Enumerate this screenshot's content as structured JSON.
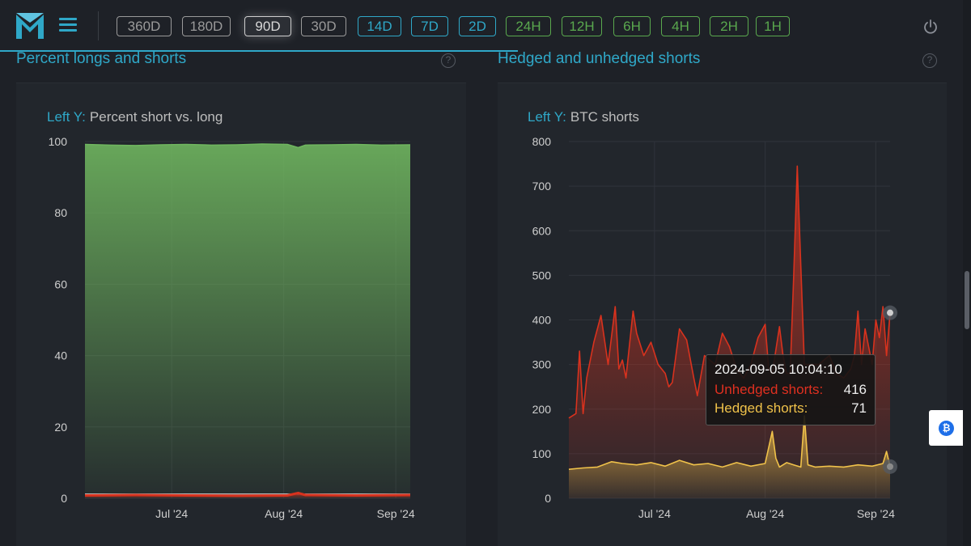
{
  "toolbar": {
    "timeframes": [
      {
        "label": "360D",
        "style": "gray"
      },
      {
        "label": "180D",
        "style": "gray"
      },
      {
        "label": "90D",
        "style": "active"
      },
      {
        "label": "30D",
        "style": "gray"
      },
      {
        "label": "14D",
        "style": "blue"
      },
      {
        "label": "7D",
        "style": "blue"
      },
      {
        "label": "2D",
        "style": "blue"
      },
      {
        "label": "24H",
        "style": "green"
      },
      {
        "label": "12H",
        "style": "green"
      },
      {
        "label": "6H",
        "style": "green"
      },
      {
        "label": "4H",
        "style": "green"
      },
      {
        "label": "2H",
        "style": "green"
      },
      {
        "label": "1H",
        "style": "green"
      }
    ],
    "icons": {
      "logo": "m-logo-icon",
      "menu": "hamburger-menu-icon",
      "power": "power-icon"
    }
  },
  "colors": {
    "accent": "#2fa8c8",
    "green_series": "#6fb55f",
    "red_series": "#d8321e",
    "yellow_series": "#f0c24a"
  },
  "sections": {
    "left_title": "Percent longs and shorts",
    "right_title": "Hedged and unhedged shorts",
    "help_glyph": "?"
  },
  "tooltip": {
    "date": "2024-09-05 10:04:10",
    "unhedged_label": "Unhedged shorts:",
    "unhedged_value": "416",
    "hedged_label": "Hedged shorts:",
    "hedged_value": "71"
  },
  "widget": {
    "btc_icon": "bitcoin-icon",
    "btc_glyph": "₿"
  },
  "chart_data": [
    {
      "type": "area",
      "axis_prefix": "Left Y:",
      "axis_title": "Percent short vs. long",
      "ylim": [
        0,
        100
      ],
      "yticks": [
        0,
        20,
        40,
        60,
        80,
        100
      ],
      "xlim": [
        "2024-06-07",
        "2024-09-05"
      ],
      "xticks": [
        {
          "label": "Jul '24",
          "x": "2024-07-01"
        },
        {
          "label": "Aug '24",
          "x": "2024-08-01"
        },
        {
          "label": "Sep '24",
          "x": "2024-09-01"
        }
      ],
      "grid": true,
      "series": [
        {
          "color": "#6fb55f",
          "x": [
            "2024-06-07",
            "2024-06-14",
            "2024-06-21",
            "2024-06-28",
            "2024-07-05",
            "2024-07-12",
            "2024-07-19",
            "2024-07-26",
            "2024-08-02",
            "2024-08-05",
            "2024-08-07",
            "2024-08-14",
            "2024-08-21",
            "2024-08-28",
            "2024-09-05"
          ],
          "values": [
            99.2,
            99.0,
            98.9,
            99.1,
            99.2,
            99.0,
            99.1,
            99.3,
            99.2,
            98.3,
            99.0,
            99.1,
            99.2,
            99.0,
            99.1
          ]
        },
        {
          "color": "#d8321e",
          "x": [
            "2024-06-07",
            "2024-06-21",
            "2024-07-05",
            "2024-07-19",
            "2024-08-02",
            "2024-08-05",
            "2024-08-07",
            "2024-08-21",
            "2024-09-05"
          ],
          "values": [
            0.8,
            0.9,
            0.8,
            0.7,
            0.8,
            1.5,
            0.9,
            0.8,
            0.9
          ]
        }
      ]
    },
    {
      "type": "area",
      "axis_prefix": "Left Y:",
      "axis_title": "BTC shorts",
      "ylim": [
        0,
        800
      ],
      "yticks": [
        0,
        100,
        200,
        300,
        400,
        500,
        600,
        700,
        800
      ],
      "xlim": [
        "2024-06-07",
        "2024-09-05"
      ],
      "xticks": [
        {
          "label": "Jul '24",
          "x": "2024-07-01"
        },
        {
          "label": "Aug '24",
          "x": "2024-08-01"
        },
        {
          "label": "Sep '24",
          "x": "2024-09-01"
        }
      ],
      "grid": true,
      "series": [
        {
          "name": "Unhedged shorts",
          "color": "#d8321e",
          "x": [
            "2024-06-07",
            "2024-06-09",
            "2024-06-10",
            "2024-06-11",
            "2024-06-12",
            "2024-06-14",
            "2024-06-16",
            "2024-06-18",
            "2024-06-20",
            "2024-06-21",
            "2024-06-22",
            "2024-06-23",
            "2024-06-25",
            "2024-06-26",
            "2024-06-28",
            "2024-06-30",
            "2024-07-02",
            "2024-07-04",
            "2024-07-05",
            "2024-07-06",
            "2024-07-08",
            "2024-07-10",
            "2024-07-12",
            "2024-07-13",
            "2024-07-15",
            "2024-07-18",
            "2024-07-20",
            "2024-07-22",
            "2024-07-24",
            "2024-07-26",
            "2024-07-28",
            "2024-07-30",
            "2024-08-01",
            "2024-08-02",
            "2024-08-03",
            "2024-08-05",
            "2024-08-06",
            "2024-08-07",
            "2024-08-08",
            "2024-08-09",
            "2024-08-10",
            "2024-08-11",
            "2024-08-12",
            "2024-08-14",
            "2024-08-16",
            "2024-08-19",
            "2024-08-21",
            "2024-08-23",
            "2024-08-25",
            "2024-08-26",
            "2024-08-27",
            "2024-08-28",
            "2024-08-29",
            "2024-08-30",
            "2024-08-31",
            "2024-09-01",
            "2024-09-02",
            "2024-09-03",
            "2024-09-04",
            "2024-09-05"
          ],
          "values": [
            180,
            190,
            330,
            190,
            270,
            350,
            410,
            300,
            430,
            290,
            310,
            270,
            420,
            370,
            320,
            350,
            300,
            280,
            250,
            260,
            380,
            355,
            270,
            230,
            320,
            300,
            370,
            340,
            290,
            270,
            300,
            360,
            390,
            290,
            280,
            385,
            320,
            280,
            280,
            500,
            745,
            520,
            300,
            300,
            300,
            320,
            280,
            270,
            290,
            320,
            420,
            300,
            380,
            340,
            300,
            400,
            360,
            430,
            320,
            416
          ]
        },
        {
          "name": "Hedged shorts",
          "color": "#f0c24a",
          "x": [
            "2024-06-07",
            "2024-06-11",
            "2024-06-15",
            "2024-06-19",
            "2024-06-22",
            "2024-06-26",
            "2024-06-30",
            "2024-07-04",
            "2024-07-08",
            "2024-07-12",
            "2024-07-16",
            "2024-07-20",
            "2024-07-24",
            "2024-07-28",
            "2024-08-01",
            "2024-08-03",
            "2024-08-04",
            "2024-08-05",
            "2024-08-07",
            "2024-08-09",
            "2024-08-11",
            "2024-08-12",
            "2024-08-13",
            "2024-08-15",
            "2024-08-19",
            "2024-08-23",
            "2024-08-27",
            "2024-08-31",
            "2024-09-03",
            "2024-09-04",
            "2024-09-05"
          ],
          "values": [
            65,
            68,
            70,
            82,
            78,
            75,
            80,
            72,
            85,
            75,
            78,
            70,
            80,
            72,
            78,
            150,
            90,
            70,
            80,
            75,
            70,
            185,
            75,
            70,
            72,
            70,
            75,
            72,
            78,
            105,
            71
          ]
        }
      ]
    }
  ]
}
